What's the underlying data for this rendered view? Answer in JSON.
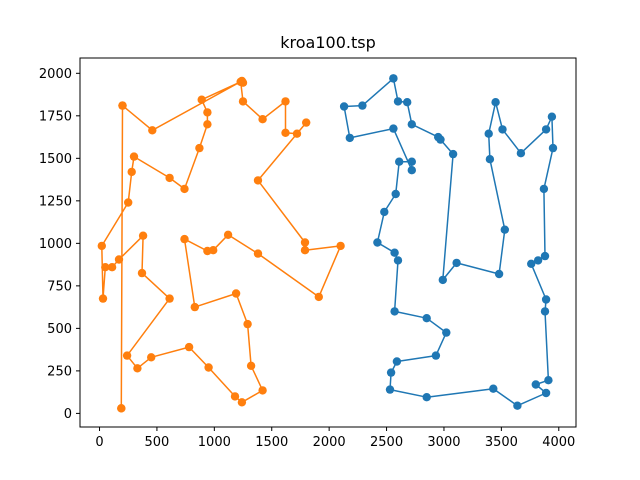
{
  "chart_data": {
    "type": "line",
    "title": "kroa100.tsp",
    "xlabel": "",
    "ylabel": "",
    "xlim": [
      -170,
      4150
    ],
    "ylim": [
      -80,
      2090
    ],
    "xticks": [
      0,
      500,
      1000,
      1500,
      2000,
      2500,
      3000,
      3500,
      4000
    ],
    "yticks": [
      0,
      250,
      500,
      750,
      1000,
      1250,
      1500,
      1750,
      2000
    ],
    "grid": false,
    "legend": "none",
    "series": [
      {
        "color": "#1f77b4",
        "marker": "circle",
        "points": [
          [
            2560,
            1970
          ],
          [
            2600,
            1835
          ],
          [
            2680,
            1830
          ],
          [
            2720,
            1700
          ],
          [
            2950,
            1625
          ],
          [
            2970,
            1610
          ],
          [
            3080,
            1525
          ],
          [
            2990,
            785
          ],
          [
            3110,
            885
          ],
          [
            3480,
            820
          ],
          [
            3530,
            1080
          ],
          [
            3400,
            1495
          ],
          [
            3390,
            1645
          ],
          [
            3450,
            1830
          ],
          [
            3510,
            1670
          ],
          [
            3670,
            1530
          ],
          [
            3890,
            1670
          ],
          [
            3940,
            1745
          ],
          [
            3950,
            1560
          ],
          [
            3870,
            1320
          ],
          [
            3880,
            925
          ],
          [
            3820,
            900
          ],
          [
            3760,
            880
          ],
          [
            3890,
            670
          ],
          [
            3880,
            600
          ],
          [
            3910,
            195
          ],
          [
            3800,
            170
          ],
          [
            3890,
            120
          ],
          [
            3640,
            45
          ],
          [
            3430,
            145
          ],
          [
            2850,
            95
          ],
          [
            2530,
            140
          ],
          [
            2540,
            240
          ],
          [
            2590,
            305
          ],
          [
            2930,
            340
          ],
          [
            3020,
            475
          ],
          [
            2850,
            560
          ],
          [
            2570,
            600
          ],
          [
            2600,
            900
          ],
          [
            2570,
            945
          ],
          [
            2420,
            1005
          ],
          [
            2480,
            1185
          ],
          [
            2580,
            1290
          ],
          [
            2610,
            1480
          ],
          [
            2720,
            1480
          ],
          [
            2720,
            1430
          ],
          [
            2560,
            1675
          ],
          [
            2180,
            1620
          ],
          [
            2130,
            1805
          ],
          [
            2290,
            1810
          ],
          [
            2560,
            1970
          ]
        ]
      },
      {
        "color": "#ff7f0e",
        "marker": "circle",
        "points": [
          [
            1230,
            1950
          ],
          [
            1250,
            1835
          ],
          [
            1420,
            1730
          ],
          [
            1620,
            1835
          ],
          [
            1620,
            1650
          ],
          [
            1720,
            1645
          ],
          [
            1800,
            1710
          ],
          [
            1380,
            1370
          ],
          [
            1790,
            1005
          ],
          [
            1790,
            960
          ],
          [
            2100,
            985
          ],
          [
            1910,
            685
          ],
          [
            1380,
            940
          ],
          [
            1120,
            1050
          ],
          [
            990,
            960
          ],
          [
            940,
            955
          ],
          [
            740,
            1025
          ],
          [
            830,
            625
          ],
          [
            1190,
            705
          ],
          [
            1290,
            525
          ],
          [
            1320,
            280
          ],
          [
            1420,
            135
          ],
          [
            1240,
            65
          ],
          [
            1180,
            100
          ],
          [
            950,
            270
          ],
          [
            780,
            390
          ],
          [
            450,
            330
          ],
          [
            330,
            265
          ],
          [
            240,
            340
          ],
          [
            610,
            675
          ],
          [
            370,
            825
          ],
          [
            380,
            1045
          ],
          [
            170,
            905
          ],
          [
            110,
            860
          ],
          [
            50,
            860
          ],
          [
            30,
            675
          ],
          [
            20,
            985
          ],
          [
            250,
            1240
          ],
          [
            280,
            1420
          ],
          [
            300,
            1510
          ],
          [
            610,
            1385
          ],
          [
            740,
            1320
          ],
          [
            870,
            1560
          ],
          [
            940,
            1700
          ],
          [
            940,
            1770
          ],
          [
            890,
            1845
          ],
          [
            1230,
            1950
          ],
          [
            1250,
            1945
          ],
          [
            1240,
            1955
          ],
          [
            460,
            1665
          ],
          [
            200,
            1810
          ],
          [
            200,
            1810
          ],
          [
            190,
            30
          ],
          [
            190,
            30
          ]
        ]
      }
    ]
  }
}
